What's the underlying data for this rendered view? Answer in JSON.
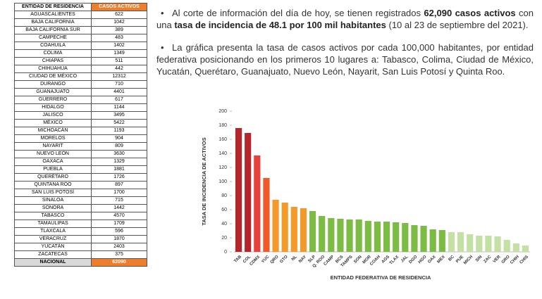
{
  "table": {
    "headers": [
      "ENTIDAD DE RESIDENCIA",
      "CASOS ACTIVOS"
    ],
    "rows": [
      [
        "AGUASCALIENTES",
        622
      ],
      [
        "BAJA CALIFORNIA",
        1042
      ],
      [
        "BAJA CALIFORNIA SUR",
        389
      ],
      [
        "CAMPECHE",
        483
      ],
      [
        "COAHUILA",
        1402
      ],
      [
        "COLIMA",
        1349
      ],
      [
        "CHIAPAS",
        511
      ],
      [
        "CHIHUAHUA",
        442
      ],
      [
        "CIUDAD DE MÉXICO",
        12312
      ],
      [
        "DURANGO",
        710
      ],
      [
        "GUANAJUATO",
        4401
      ],
      [
        "GUERRERO",
        617
      ],
      [
        "HIDALGO",
        1144
      ],
      [
        "JALISCO",
        3495
      ],
      [
        "MÉXICO",
        5422
      ],
      [
        "MICHOACÁN",
        1193
      ],
      [
        "MORELOS",
        904
      ],
      [
        "NAYARIT",
        809
      ],
      [
        "NUEVO LEÓN",
        3630
      ],
      [
        "OAXACA",
        1329
      ],
      [
        "PUEBLA",
        1881
      ],
      [
        "QUERÉTARO",
        1726
      ],
      [
        "QUINTANA ROO",
        897
      ],
      [
        "SAN LUIS POTOSÍ",
        1700
      ],
      [
        "SINALOA",
        715
      ],
      [
        "SONORA",
        1442
      ],
      [
        "TABASCO",
        4570
      ],
      [
        "TAMAULIPAS",
        1709
      ],
      [
        "TLAXCALA",
        596
      ],
      [
        "VERACRUZ",
        1870
      ],
      [
        "YUCATÁN",
        2403
      ],
      [
        "ZACATECAS",
        375
      ]
    ],
    "footer": [
      "NACIONAL",
      62090
    ]
  },
  "paragraphs": [
    [
      {
        "text": "Al corte de información del día de hoy, se tienen registrados ",
        "bold": false
      },
      {
        "text": "62,090 casos activos",
        "bold": true
      },
      {
        "text": " con una ",
        "bold": false
      },
      {
        "text": "tasa de incidencia de 48.1 por 100 mil habitantes",
        "bold": true
      },
      {
        "text": " (10 al 23 de septiembre del 2021).",
        "bold": false
      }
    ],
    [
      {
        "text": "La gráfica presenta la tasa de casos activos por cada 100,000 habitantes, por entidad federativa posicionando en los primeros 10 lugares a: Tabasco, Colima, Ciudad de México, Yucatán, Querétaro, Guanajuato, Nuevo León, Nayarit, San Luis Potosí y Quinta Roo.",
        "bold": false
      }
    ]
  ],
  "chart_data": {
    "type": "bar",
    "xlabel": "ENTIDAD FEDERATIVA DE RESIDENCIA",
    "ylabel": "TASA DE INCIDENCIA DE ACTIVOS",
    "categories": [
      "TAB",
      "COL",
      "CDMX",
      "YUC",
      "QRO",
      "GTO",
      "NL",
      "NAY",
      "SLP",
      "Q. ROO",
      "CAMP",
      "BCS",
      "TAMPS",
      "SON",
      "MOR",
      "COAH",
      "AGS",
      "TLAX",
      "JAL",
      "DGO",
      "HGO",
      "OAX",
      "MEX",
      "BC",
      "PUE",
      "MICH",
      "SIN",
      "ZAC",
      "VER",
      "GRO",
      "CHIH",
      "CHIS"
    ],
    "values": [
      176,
      169,
      137,
      105,
      74,
      70,
      64,
      62,
      58,
      51,
      48,
      47,
      46,
      46,
      44,
      43,
      43,
      42,
      41,
      38,
      37,
      32,
      31,
      28,
      28,
      25,
      23,
      23,
      22,
      17,
      12,
      9
    ],
    "colors": [
      "#b5262b",
      "#b5262b",
      "#e8413b",
      "#f05a28",
      "#f39a2b",
      "#f39a2b",
      "#f39a2b",
      "#f39a2b",
      "#7cbc45",
      "#7cbc45",
      "#7cbc45",
      "#7cbc45",
      "#7cbc45",
      "#7cbc45",
      "#7cbc45",
      "#7cbc45",
      "#7cbc45",
      "#7cbc45",
      "#7cbc45",
      "#7cbc45",
      "#7cbc45",
      "#7cbc45",
      "#7cbc45",
      "#c5e0a5",
      "#c5e0a5",
      "#c5e0a5",
      "#c5e0a5",
      "#c5e0a5",
      "#c5e0a5",
      "#c5e0a5",
      "#c5e0a5",
      "#c5e0a5"
    ],
    "ylim": [
      0,
      200
    ],
    "yticks": [
      0,
      20,
      40,
      60,
      80,
      100,
      120,
      140,
      160,
      180,
      200
    ],
    "grid": false
  }
}
